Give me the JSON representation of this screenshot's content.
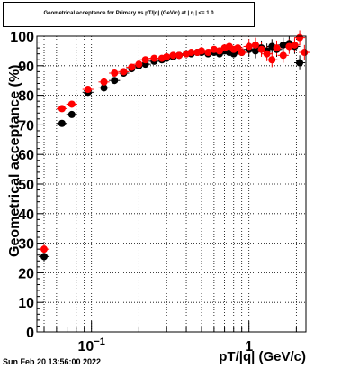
{
  "title": "Geometrical acceptance for Primary vs pT/|q| (GeV/c) at | η | <= 1.0",
  "footer": {
    "date": "Sun Feb 20 13:56:00 2022"
  },
  "chart_data": {
    "type": "scatter",
    "xlabel": "pT/|q| (GeV/c)",
    "ylabel": "Geometrical acceptance (%)",
    "xscale": "log",
    "xlim": [
      0.045,
      2.3
    ],
    "ylim": [
      0,
      100
    ],
    "grid": true,
    "ytick_labels": [
      "0",
      "10",
      "20",
      "30",
      "40",
      "50",
      "60",
      "70",
      "80",
      "90",
      "100"
    ],
    "xtick_labels": [
      {
        "value": 0.1,
        "base": "10",
        "exp": "−1"
      },
      {
        "value": 1,
        "base": "1",
        "exp": ""
      }
    ],
    "series": [
      {
        "color": "#000000",
        "x": [
          0.05,
          0.065,
          0.075,
          0.095,
          0.12,
          0.14,
          0.16,
          0.18,
          0.2,
          0.22,
          0.25,
          0.28,
          0.3,
          0.33,
          0.36,
          0.4,
          0.43,
          0.47,
          0.5,
          0.55,
          0.6,
          0.65,
          0.7,
          0.75,
          0.8,
          0.85,
          0.9,
          1.0,
          1.1,
          1.2,
          1.3,
          1.4,
          1.5,
          1.65,
          1.8,
          1.95,
          2.1
        ],
        "y": [
          25.5,
          70.5,
          73.5,
          81.0,
          82.5,
          85.0,
          87.5,
          89.0,
          90.0,
          90.5,
          91.5,
          92.0,
          92.5,
          93.0,
          93.5,
          94.0,
          94.0,
          94.5,
          94.5,
          94.0,
          94.5,
          94.0,
          95.0,
          94.5,
          94.0,
          95.0,
          94.5,
          95.5,
          95.0,
          96.0,
          95.0,
          96.5,
          95.5,
          97.0,
          97.5,
          96.5,
          91.0
        ]
      },
      {
        "color": "#ff0000",
        "x": [
          0.05,
          0.065,
          0.075,
          0.095,
          0.12,
          0.14,
          0.16,
          0.18,
          0.2,
          0.22,
          0.25,
          0.28,
          0.3,
          0.33,
          0.36,
          0.4,
          0.43,
          0.47,
          0.5,
          0.55,
          0.6,
          0.65,
          0.7,
          0.75,
          0.8,
          0.85,
          0.9,
          1.0,
          1.1,
          1.2,
          1.3,
          1.4,
          1.5,
          1.65,
          1.8,
          1.95,
          2.1,
          2.25
        ],
        "y": [
          28.0,
          75.5,
          77.0,
          82.0,
          84.5,
          87.5,
          88.0,
          89.5,
          90.5,
          92.0,
          92.5,
          92.5,
          93.0,
          93.5,
          93.5,
          94.0,
          94.5,
          94.5,
          95.0,
          94.5,
          95.5,
          95.0,
          96.0,
          96.5,
          95.5,
          96.0,
          94.5,
          96.5,
          97.0,
          95.5,
          94.0,
          92.0,
          96.0,
          93.5,
          96.5,
          97.0,
          99.5,
          94.5
        ]
      }
    ]
  }
}
